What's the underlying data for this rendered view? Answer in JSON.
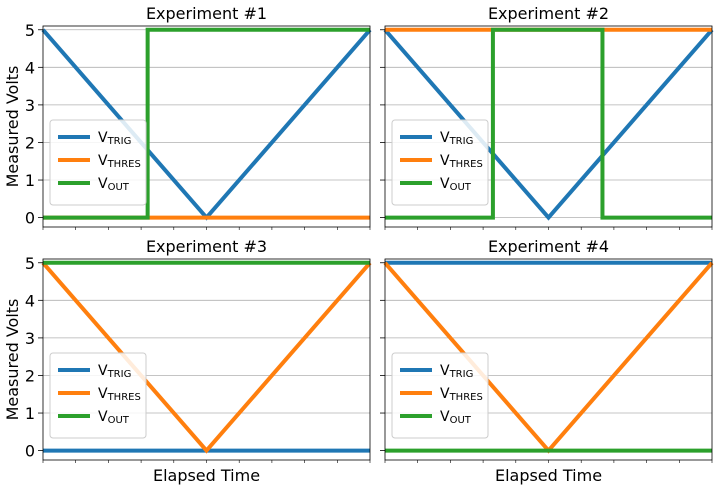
{
  "ylabel": "Measured Volts",
  "xlabel": "Elapsed Time",
  "colors": {
    "trig": "#1f77b4",
    "thres": "#ff7f0e",
    "out": "#2ca02c"
  },
  "legend": [
    {
      "key": "trig",
      "main": "V",
      "sub": "TRIG"
    },
    {
      "key": "thres",
      "main": "V",
      "sub": "THRES"
    },
    {
      "key": "out",
      "main": "V",
      "sub": "OUT"
    }
  ],
  "chart_data": [
    {
      "type": "line",
      "title": "Experiment #1",
      "xlim": [
        0,
        1
      ],
      "ylim": [
        -0.25,
        5.1
      ],
      "yticks": [
        0,
        1,
        2,
        3,
        4,
        5
      ],
      "grid": "y",
      "legend_position": "center-left",
      "series": [
        {
          "key": "trig",
          "x": [
            0,
            0.5,
            1
          ],
          "y": [
            5,
            0,
            5
          ]
        },
        {
          "key": "thres",
          "x": [
            0,
            1
          ],
          "y": [
            0,
            0
          ]
        },
        {
          "key": "out",
          "x": [
            0,
            0.32,
            0.32,
            1
          ],
          "y": [
            0,
            0,
            5,
            5
          ]
        }
      ]
    },
    {
      "type": "line",
      "title": "Experiment #2",
      "xlim": [
        0,
        1
      ],
      "ylim": [
        -0.25,
        5.1
      ],
      "yticks": [
        0,
        1,
        2,
        3,
        4,
        5
      ],
      "grid": "y",
      "legend_position": "center-left",
      "series": [
        {
          "key": "trig",
          "x": [
            0,
            0.5,
            1
          ],
          "y": [
            5,
            0,
            5
          ]
        },
        {
          "key": "thres",
          "x": [
            0,
            1
          ],
          "y": [
            5,
            5
          ]
        },
        {
          "key": "out",
          "x": [
            0,
            0.33,
            0.33,
            0.665,
            0.665,
            1
          ],
          "y": [
            0,
            0,
            5,
            5,
            0,
            0
          ]
        }
      ]
    },
    {
      "type": "line",
      "title": "Experiment #3",
      "xlim": [
        0,
        1
      ],
      "ylim": [
        -0.25,
        5.1
      ],
      "yticks": [
        0,
        1,
        2,
        3,
        4,
        5
      ],
      "grid": "y",
      "legend_position": "center-left",
      "series": [
        {
          "key": "trig",
          "x": [
            0,
            1
          ],
          "y": [
            0,
            0
          ]
        },
        {
          "key": "thres",
          "x": [
            0,
            0.5,
            1
          ],
          "y": [
            5,
            0,
            5
          ]
        },
        {
          "key": "out",
          "x": [
            0,
            1
          ],
          "y": [
            5,
            5
          ]
        }
      ]
    },
    {
      "type": "line",
      "title": "Experiment #4",
      "xlim": [
        0,
        1
      ],
      "ylim": [
        -0.25,
        5.1
      ],
      "yticks": [
        0,
        1,
        2,
        3,
        4,
        5
      ],
      "grid": "y",
      "legend_position": "center-left",
      "series": [
        {
          "key": "trig",
          "x": [
            0,
            1
          ],
          "y": [
            5,
            5
          ]
        },
        {
          "key": "thres",
          "x": [
            0,
            0.5,
            1
          ],
          "y": [
            5,
            0,
            5
          ]
        },
        {
          "key": "out",
          "x": [
            0,
            1
          ],
          "y": [
            0,
            0
          ]
        }
      ]
    }
  ]
}
